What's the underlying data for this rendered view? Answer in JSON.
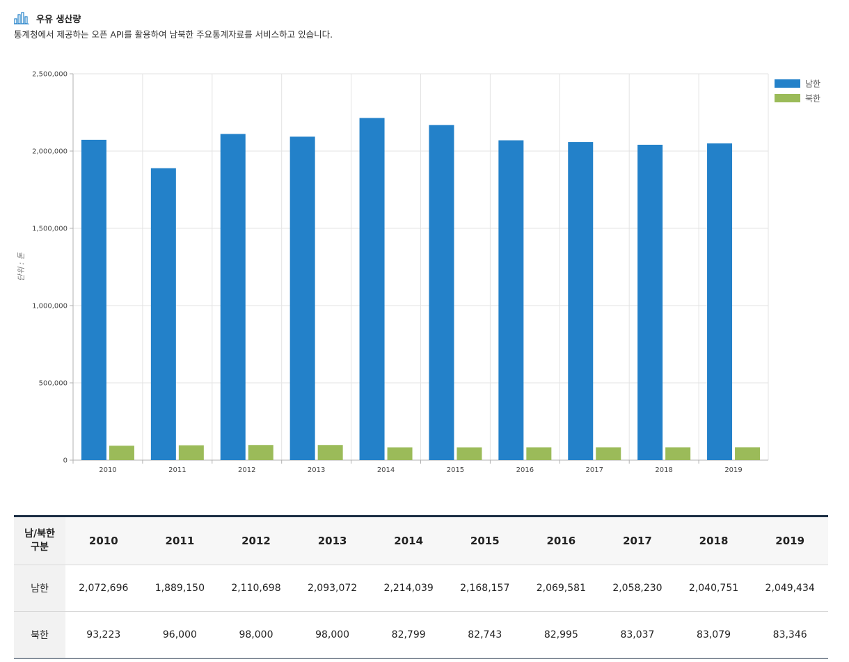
{
  "header": {
    "title": "우유 생산량",
    "subtitle": "통계청에서 제공하는 오픈 API를 활용하여 남북한 주요통계자료를 서비스하고 있습니다."
  },
  "colors": {
    "south": "#2381c9",
    "north": "#9bbb59",
    "grid": "#e3e3e3",
    "axis": "#b0b0b0",
    "icon": "#2381c9"
  },
  "chart_data": {
    "type": "bar",
    "categories": [
      "2010",
      "2011",
      "2012",
      "2013",
      "2014",
      "2015",
      "2016",
      "2017",
      "2018",
      "2019"
    ],
    "series": [
      {
        "name": "남한",
        "values": [
          2072696,
          1889150,
          2110698,
          2093072,
          2214039,
          2168157,
          2069581,
          2058230,
          2040751,
          2049434
        ]
      },
      {
        "name": "북한",
        "values": [
          93223,
          96000,
          98000,
          98000,
          82799,
          82743,
          82995,
          83037,
          83079,
          83346
        ]
      }
    ],
    "ylabel": "단위 : 톤",
    "ylim": [
      0,
      2500000
    ],
    "yticks": [
      "2,500,000",
      "2,000,000",
      "1,500,000",
      "1,000,000",
      "500,000",
      "0"
    ],
    "grid": true,
    "legend": "top-right"
  },
  "table": {
    "corner_line1": "남/북한",
    "corner_line2": "구분",
    "years": [
      "2010",
      "2011",
      "2012",
      "2013",
      "2014",
      "2015",
      "2016",
      "2017",
      "2018",
      "2019"
    ],
    "rows": [
      {
        "label": "남한",
        "values": [
          "2,072,696",
          "1,889,150",
          "2,110,698",
          "2,093,072",
          "2,214,039",
          "2,168,157",
          "2,069,581",
          "2,058,230",
          "2,040,751",
          "2,049,434"
        ]
      },
      {
        "label": "북한",
        "values": [
          "93,223",
          "96,000",
          "98,000",
          "98,000",
          "82,799",
          "82,743",
          "82,995",
          "83,037",
          "83,079",
          "83,346"
        ]
      }
    ]
  }
}
